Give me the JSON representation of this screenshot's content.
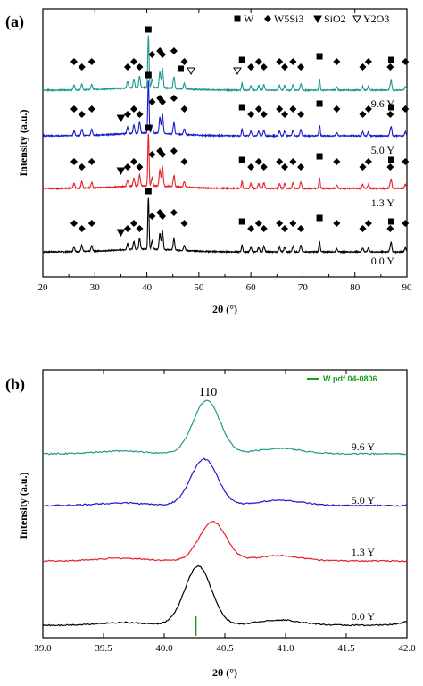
{
  "chart_data": [
    {
      "type": "line",
      "panel_label": "(a)",
      "xlabel": "2θ (°)",
      "ylabel": "Intensity (a.u.)",
      "xlim": [
        20,
        90
      ],
      "xticks": [
        20,
        30,
        40,
        50,
        60,
        70,
        80,
        90
      ],
      "legend": {
        "position": "top-right",
        "entries": [
          {
            "marker": "square",
            "label": "W"
          },
          {
            "marker": "diamond",
            "label": "W5Si3"
          },
          {
            "marker": "triangle-down",
            "label": "SiO2"
          },
          {
            "marker": "triangle-down-open",
            "label": "Y2O3"
          }
        ]
      },
      "series": [
        {
          "name": "0.0 Y",
          "color": "#000000"
        },
        {
          "name": "1.3 Y",
          "color": "#e8202a"
        },
        {
          "name": "5.0 Y",
          "color": "#1a1acc"
        },
        {
          "name": "9.6 Y",
          "color": "#1e9a8c"
        }
      ],
      "peaks": {
        "W": [
          40.3,
          58.3,
          73.2,
          87.0
        ],
        "W5Si3": [
          26.0,
          27.5,
          29.4,
          36.3,
          37.5,
          38.6,
          41.0,
          42.5,
          43.0,
          45.2,
          47.2,
          60.0,
          61.5,
          62.5,
          65.5,
          66.5,
          68.1,
          69.6,
          76.5,
          81.5,
          82.6,
          86.8,
          89.7
        ],
        "SiO2": [
          35.0
        ],
        "Y2O3": [
          48.5,
          57.4
        ]
      }
    },
    {
      "type": "line",
      "panel_label": "(b)",
      "xlabel": "2θ (°)",
      "ylabel": "Intensity (a.u.)",
      "xlim": [
        39.0,
        42.0
      ],
      "xticks": [
        "39.0",
        "39.5",
        "40.0",
        "40.5",
        "41.0",
        "41.5",
        "42.0"
      ],
      "peak_label": "110",
      "reference": {
        "label": "W pdf 04-0806",
        "x": 40.26,
        "color": "#1a9b1a"
      },
      "series": [
        {
          "name": "0.0 Y",
          "color": "#000000",
          "peak_x": 40.28
        },
        {
          "name": "1.3 Y",
          "color": "#e8202a",
          "peak_x": 40.4
        },
        {
          "name": "5.0 Y",
          "color": "#1a1acc",
          "peak_x": 40.33
        },
        {
          "name": "9.6 Y",
          "color": "#1e9a8c",
          "peak_x": 40.35
        }
      ]
    }
  ]
}
